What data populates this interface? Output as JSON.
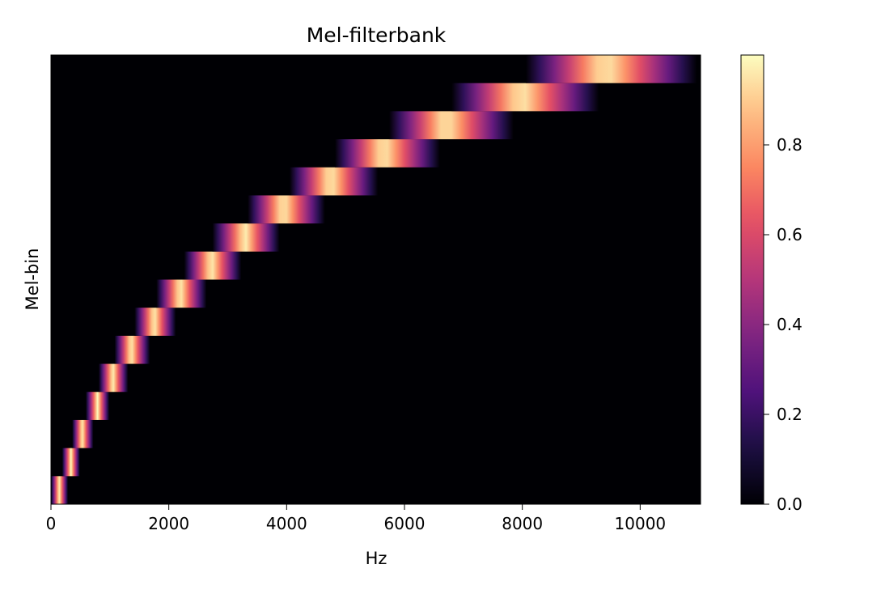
{
  "chart_data": {
    "type": "heatmap",
    "title": "Mel-filterbank",
    "xlabel": "Hz",
    "ylabel": "Mel-bin",
    "xlim": [
      0,
      11025
    ],
    "x_ticks": [
      0,
      2000,
      4000,
      6000,
      8000,
      10000
    ],
    "x_tick_labels": [
      "0",
      "2000",
      "4000",
      "6000",
      "8000",
      "10000"
    ],
    "y_ticks": [],
    "n_bins": 16,
    "filter_shape": "triangular",
    "filter_peak": 1.0,
    "filters": [
      {
        "bin": 1,
        "low": 0,
        "center": 140,
        "high": 290
      },
      {
        "bin": 2,
        "low": 190,
        "center": 340,
        "high": 490
      },
      {
        "bin": 3,
        "low": 360,
        "center": 530,
        "high": 720
      },
      {
        "bin": 4,
        "low": 590,
        "center": 790,
        "high": 990
      },
      {
        "bin": 5,
        "low": 810,
        "center": 1050,
        "high": 1310
      },
      {
        "bin": 6,
        "low": 1080,
        "center": 1360,
        "high": 1680
      },
      {
        "bin": 7,
        "low": 1420,
        "center": 1750,
        "high": 2120
      },
      {
        "bin": 8,
        "low": 1790,
        "center": 2190,
        "high": 2640
      },
      {
        "bin": 9,
        "low": 2260,
        "center": 2720,
        "high": 3230
      },
      {
        "bin": 10,
        "low": 2740,
        "center": 3290,
        "high": 3880
      },
      {
        "bin": 11,
        "low": 3340,
        "center": 3940,
        "high": 4650
      },
      {
        "bin": 12,
        "low": 4050,
        "center": 4740,
        "high": 5550
      },
      {
        "bin": 13,
        "low": 4820,
        "center": 5640,
        "high": 6600
      },
      {
        "bin": 14,
        "low": 5740,
        "center": 6700,
        "high": 7850
      },
      {
        "bin": 15,
        "low": 6800,
        "center": 7970,
        "high": 9300
      },
      {
        "bin": 16,
        "low": 8060,
        "center": 9400,
        "high": 10960
      }
    ],
    "colormap": "magma",
    "colorbar": {
      "vmin": 0.0,
      "vmax": 1.0,
      "ticks": [
        0.0,
        0.2,
        0.4,
        0.6,
        0.8
      ],
      "tick_labels": [
        "0.0",
        "0.2",
        "0.4",
        "0.6",
        "0.8"
      ]
    },
    "background_color": "#000004"
  }
}
